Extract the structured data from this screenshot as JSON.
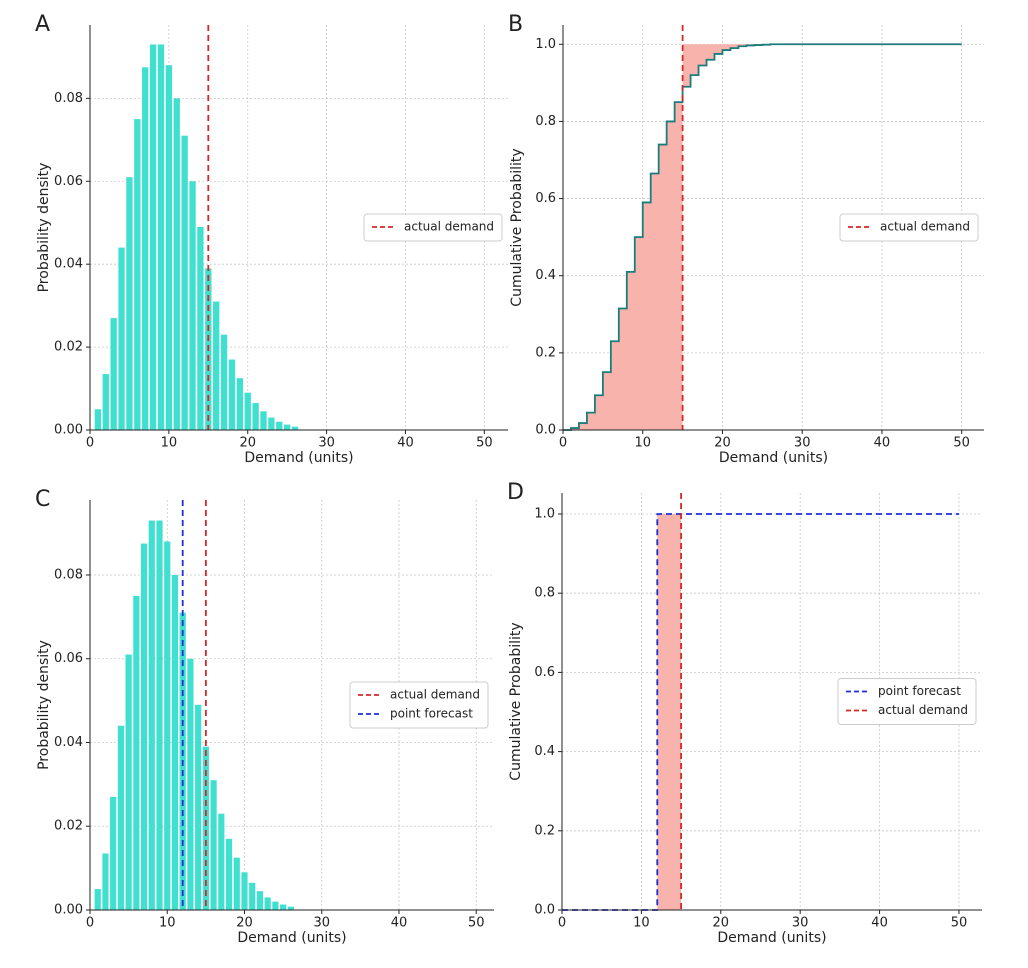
{
  "chart_data": [
    {
      "type": "bar",
      "label": "A",
      "xlabel": "Demand (units)",
      "ylabel": "Probability density",
      "x": [
        1,
        2,
        3,
        4,
        5,
        6,
        7,
        8,
        9,
        10,
        11,
        12,
        13,
        14,
        15,
        16,
        17,
        18,
        19,
        20,
        21,
        22,
        23,
        24,
        25,
        26
      ],
      "values": [
        0.005,
        0.0135,
        0.027,
        0.044,
        0.061,
        0.075,
        0.0875,
        0.093,
        0.093,
        0.088,
        0.08,
        0.071,
        0.06,
        0.049,
        0.039,
        0.031,
        0.023,
        0.017,
        0.0125,
        0.009,
        0.0065,
        0.0045,
        0.003,
        0.002,
        0.0013,
        0.0008
      ],
      "color": "#40e0d0",
      "xlim": [
        0,
        53
      ],
      "ylim": [
        0,
        0.0977
      ],
      "xticks": [
        0,
        10,
        20,
        30,
        40,
        50
      ],
      "yticks": [
        {
          "value": 0,
          "label": "0.00"
        },
        {
          "value": 0.02,
          "label": "0.02"
        },
        {
          "value": 0.04,
          "label": "0.04"
        },
        {
          "value": 0.06,
          "label": "0.06"
        },
        {
          "value": 0.08,
          "label": "0.08"
        }
      ],
      "vlines": [
        {
          "name": "actual demand",
          "x": 15,
          "color": "#d62728"
        }
      ],
      "legend": "center right",
      "grid": true
    },
    {
      "type": "step",
      "label": "B",
      "xlabel": "Demand (units)",
      "ylabel": "Cumulative Probability",
      "series": [
        {
          "x": [
            0,
            1,
            2,
            3,
            4,
            5,
            6,
            7,
            8,
            9,
            10,
            11,
            12,
            13,
            14,
            15,
            16,
            17,
            18,
            19,
            20,
            21,
            22,
            23,
            24,
            25,
            26,
            50
          ],
          "values": [
            0,
            0.005,
            0.018,
            0.045,
            0.09,
            0.15,
            0.23,
            0.315,
            0.41,
            0.5,
            0.59,
            0.665,
            0.74,
            0.8,
            0.85,
            0.89,
            0.92,
            0.945,
            0.96,
            0.975,
            0.985,
            0.99,
            0.995,
            0.997,
            0.998,
            0.999,
            1.0,
            1.0
          ],
          "color": "#1b7c7c"
        }
      ],
      "fill_color": "#f8b4ac",
      "xlim": [
        0,
        52.8
      ],
      "ylim": [
        0,
        1.05
      ],
      "xticks": [
        0,
        10,
        20,
        30,
        40,
        50
      ],
      "yticks": [
        {
          "value": 0,
          "label": "0.0"
        },
        {
          "value": 0.2,
          "label": "0.2"
        },
        {
          "value": 0.4,
          "label": "0.4"
        },
        {
          "value": 0.6,
          "label": "0.6"
        },
        {
          "value": 0.8,
          "label": "0.8"
        },
        {
          "value": 1,
          "label": "1.0"
        }
      ],
      "vlines": [
        {
          "name": "actual demand",
          "x": 15,
          "color": "#d62728"
        }
      ],
      "legend": "center right",
      "grid": true
    },
    {
      "type": "bar",
      "label": "C",
      "xlabel": "Demand (units)",
      "ylabel": "Probability density",
      "x": [
        1,
        2,
        3,
        4,
        5,
        6,
        7,
        8,
        9,
        10,
        11,
        12,
        13,
        14,
        15,
        16,
        17,
        18,
        19,
        20,
        21,
        22,
        23,
        24,
        25,
        26
      ],
      "values": [
        0.005,
        0.0135,
        0.027,
        0.044,
        0.061,
        0.075,
        0.0875,
        0.093,
        0.093,
        0.088,
        0.08,
        0.071,
        0.06,
        0.049,
        0.039,
        0.031,
        0.023,
        0.017,
        0.0125,
        0.009,
        0.0065,
        0.0045,
        0.003,
        0.002,
        0.0013,
        0.0008
      ],
      "color": "#40e0d0",
      "xlim": [
        0,
        52.3
      ],
      "ylim": [
        0,
        0.0979
      ],
      "xticks": [
        0,
        10,
        20,
        30,
        40,
        50
      ],
      "yticks": [
        {
          "value": 0,
          "label": "0.00"
        },
        {
          "value": 0.02,
          "label": "0.02"
        },
        {
          "value": 0.04,
          "label": "0.04"
        },
        {
          "value": 0.06,
          "label": "0.06"
        },
        {
          "value": 0.08,
          "label": "0.08"
        }
      ],
      "vlines": [
        {
          "name": "actual demand",
          "x": 15,
          "color": "#d62728"
        },
        {
          "name": "point forecast",
          "x": 12,
          "color": "#1f2fd6"
        }
      ],
      "legend": "center right",
      "grid": true
    },
    {
      "type": "step",
      "label": "D",
      "xlabel": "Demand (units)",
      "ylabel": "Cumulative Probability",
      "series": [
        {
          "name": "point forecast",
          "x": [
            0,
            12,
            50
          ],
          "values": [
            0,
            1,
            1
          ],
          "color": "#1f2fd6",
          "linestyle": "dashed"
        }
      ],
      "fill_color": "#f8b4ac",
      "xlim": [
        0,
        52.9
      ],
      "ylim": [
        0,
        1.053
      ],
      "xticks": [
        0,
        10,
        20,
        30,
        40,
        50
      ],
      "yticks": [
        {
          "value": 0,
          "label": "0.0"
        },
        {
          "value": 0.2,
          "label": "0.2"
        },
        {
          "value": 0.4,
          "label": "0.4"
        },
        {
          "value": 0.6,
          "label": "0.6"
        },
        {
          "value": 0.8,
          "label": "0.8"
        },
        {
          "value": 1,
          "label": "1.0"
        }
      ],
      "vlines": [
        {
          "name": "actual demand",
          "x": 15,
          "color": "#d62728"
        }
      ],
      "legend": "center right",
      "grid": true
    }
  ]
}
